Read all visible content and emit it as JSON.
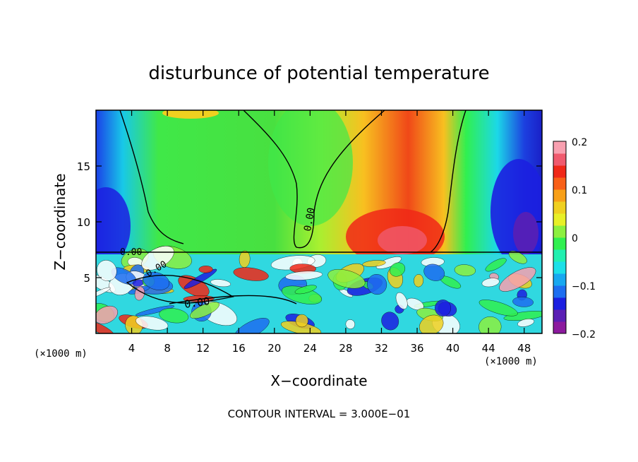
{
  "chart_data": {
    "type": "heatmap",
    "title": "disturbunce of potential temperature",
    "xlabel": "X−coordinate",
    "ylabel": "Z−coordinate",
    "x_unit": "(×1000 m)",
    "y_unit": "(×1000 m)",
    "xlim": [
      0,
      50
    ],
    "ylim": [
      0,
      20
    ],
    "x_ticks": [
      4,
      8,
      12,
      16,
      20,
      24,
      28,
      32,
      36,
      40,
      44,
      48
    ],
    "y_ticks": [
      5,
      10,
      15
    ],
    "x_tick_labels": [
      "4",
      "8",
      "12",
      "16",
      "20",
      "24",
      "28",
      "32",
      "36",
      "40",
      "44",
      "48"
    ],
    "y_tick_labels": [
      "5",
      "10",
      "15"
    ],
    "colorbar": {
      "range": [
        -0.2,
        0.2
      ],
      "tick_values": [
        0.2,
        0.1,
        0,
        -0.1,
        -0.2
      ],
      "tick_labels": [
        "0.2",
        "0.1",
        "0",
        "−0.1",
        "−0.2"
      ],
      "colors": [
        "#8c1a9e",
        "#5a1fb4",
        "#1c1fe0",
        "#1e6ef0",
        "#18a8f0",
        "#1ce0e8",
        "#22f0b0",
        "#30f050",
        "#8cf040",
        "#e8f028",
        "#f0d020",
        "#f8a018",
        "#f86018",
        "#f02818",
        "#f05a6e",
        "#f8a0b0"
      ]
    },
    "contour_labels": [
      "0.00",
      "0.00",
      "0.00",
      "0.00"
    ],
    "contour_interval": "CONTOUR INTERVAL = 3.000E−01",
    "grid": false
  }
}
